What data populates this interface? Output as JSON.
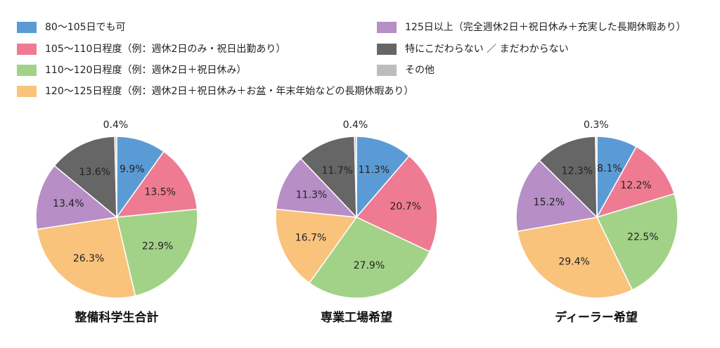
{
  "legend": [
    {
      "label": "80〜105日でも可",
      "color": "#5b9bd5"
    },
    {
      "label": "105〜110日程度（例：週休2日のみ・祝日出勤あり）",
      "color": "#ee7b91"
    },
    {
      "label": "110〜120日程度（例：週休2日＋祝日休み）",
      "color": "#a2d288"
    },
    {
      "label": "120〜125日程度（例：週休2日＋祝日休み＋お盆・年末年始などの長期休暇あり）",
      "color": "#f9c37c"
    },
    {
      "label": "125日以上（完全週休2日＋祝日休み＋充実した長期休暇あり）",
      "color": "#b78ec6"
    },
    {
      "label": "特にこだわらない ／ まだわからない",
      "color": "#666666"
    },
    {
      "label": "その他",
      "color": "#bdbdbd"
    }
  ],
  "chart_data": [
    {
      "type": "pie",
      "title": "整備科学生合計",
      "values": [
        9.9,
        13.5,
        22.9,
        26.3,
        13.4,
        13.6,
        0.4
      ],
      "labels": [
        "9.9%",
        "13.5%",
        "22.9%",
        "26.3%",
        "13.4%",
        "13.6%",
        "0.4%"
      ]
    },
    {
      "type": "pie",
      "title": "専業工場希望",
      "values": [
        11.3,
        20.7,
        27.9,
        16.7,
        11.3,
        11.7,
        0.4
      ],
      "labels": [
        "11.3%",
        "20.7%",
        "27.9%",
        "16.7%",
        "11.3%",
        "11.7%",
        "0.4%"
      ]
    },
    {
      "type": "pie",
      "title": "ディーラー希望",
      "values": [
        8.1,
        12.2,
        22.5,
        29.4,
        15.2,
        12.3,
        0.3
      ],
      "labels": [
        "8.1%",
        "12.2%",
        "22.5%",
        "29.4%",
        "15.2%",
        "12.3%",
        "0.3%"
      ]
    }
  ]
}
